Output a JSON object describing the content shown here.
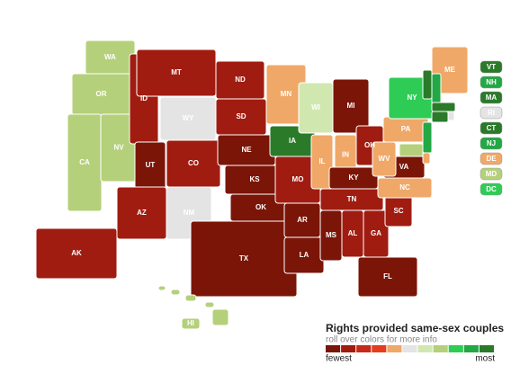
{
  "map": {
    "states": [
      {
        "abbr": "WA",
        "color": "#b5d07a"
      },
      {
        "abbr": "OR",
        "color": "#b5d07a"
      },
      {
        "abbr": "CA",
        "color": "#b5d07a"
      },
      {
        "abbr": "NV",
        "color": "#b5d07a"
      },
      {
        "abbr": "ID",
        "color": "#a01c10"
      },
      {
        "abbr": "MT",
        "color": "#a01c10"
      },
      {
        "abbr": "WY",
        "color": "#e4e4e4"
      },
      {
        "abbr": "UT",
        "color": "#7a1508"
      },
      {
        "abbr": "CO",
        "color": "#a01c10"
      },
      {
        "abbr": "AZ",
        "color": "#a01c10"
      },
      {
        "abbr": "NM",
        "color": "#e4e4e4"
      },
      {
        "abbr": "ND",
        "color": "#a01c10"
      },
      {
        "abbr": "SD",
        "color": "#a01c10"
      },
      {
        "abbr": "NE",
        "color": "#7a1508"
      },
      {
        "abbr": "KS",
        "color": "#7a1508"
      },
      {
        "abbr": "OK",
        "color": "#7a1508"
      },
      {
        "abbr": "TX",
        "color": "#7a1508"
      },
      {
        "abbr": "MN",
        "color": "#f0a868"
      },
      {
        "abbr": "IA",
        "color": "#2a7a2a"
      },
      {
        "abbr": "MO",
        "color": "#a01c10"
      },
      {
        "abbr": "AR",
        "color": "#7a1508"
      },
      {
        "abbr": "LA",
        "color": "#7a1508"
      },
      {
        "abbr": "WI",
        "color": "#d0e8b0"
      },
      {
        "abbr": "IL",
        "color": "#f0a868"
      },
      {
        "abbr": "MI",
        "color": "#7a1508"
      },
      {
        "abbr": "IN",
        "color": "#f0a868"
      },
      {
        "abbr": "OH",
        "color": "#a01c10"
      },
      {
        "abbr": "KY",
        "color": "#7a1508"
      },
      {
        "abbr": "TN",
        "color": "#a01c10"
      },
      {
        "abbr": "MS",
        "color": "#7a1508"
      },
      {
        "abbr": "AL",
        "color": "#a01c10"
      },
      {
        "abbr": "GA",
        "color": "#a01c10"
      },
      {
        "abbr": "FL",
        "color": "#7a1508"
      },
      {
        "abbr": "SC",
        "color": "#a01c10"
      },
      {
        "abbr": "NC",
        "color": "#f0a868"
      },
      {
        "abbr": "VA",
        "color": "#7a1508"
      },
      {
        "abbr": "WV",
        "color": "#f0a868"
      },
      {
        "abbr": "PA",
        "color": "#f0a868"
      },
      {
        "abbr": "NY",
        "color": "#2ecc55"
      },
      {
        "abbr": "ME",
        "color": "#f0a868"
      },
      {
        "abbr": "AK",
        "color": "#a01c10"
      },
      {
        "abbr": "HI",
        "color": "#b5d07a"
      }
    ],
    "side_states": [
      {
        "abbr": "VT",
        "color": "#2a7a2a"
      },
      {
        "abbr": "NH",
        "color": "#22a844"
      },
      {
        "abbr": "MA",
        "color": "#2a7a2a"
      },
      {
        "abbr": "RI",
        "color": "#e4e4e4"
      },
      {
        "abbr": "CT",
        "color": "#2a7a2a"
      },
      {
        "abbr": "NJ",
        "color": "#22a844"
      },
      {
        "abbr": "DE",
        "color": "#f0a868"
      },
      {
        "abbr": "MD",
        "color": "#b5d07a"
      },
      {
        "abbr": "DC",
        "color": "#2ecc55"
      }
    ],
    "legend": {
      "title": "Rights provided same-sex couples",
      "subtitle": "roll over colors for more info",
      "low": "fewest",
      "high": "most",
      "colors": [
        "#7a1508",
        "#a01c10",
        "#c8281a",
        "#e63c1c",
        "#f0a868",
        "#e4e4e4",
        "#d0e8b0",
        "#b5d07a",
        "#2ecc55",
        "#22a844",
        "#2a7a2a"
      ]
    }
  }
}
